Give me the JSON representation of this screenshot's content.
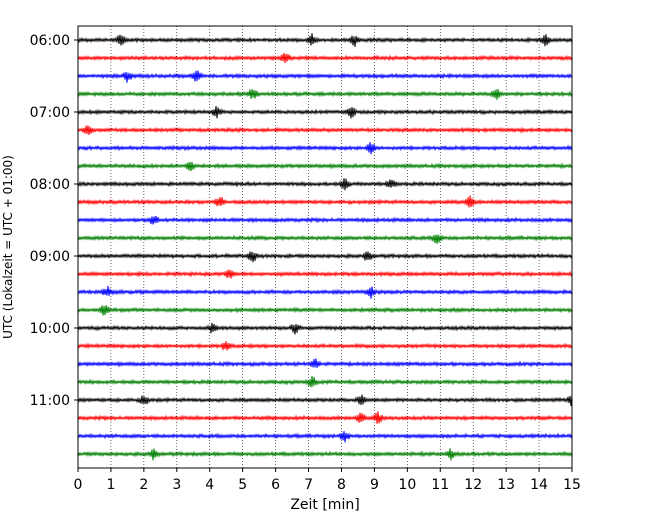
{
  "chart_data": {
    "type": "line",
    "title": "",
    "xlabel": "Zeit  [min]",
    "ylabel": "UTC (Lokalzeit = UTC + 01:00)",
    "xlim": [
      0,
      15
    ],
    "x_ticks": [
      "0",
      "1",
      "2",
      "3",
      "4",
      "5",
      "6",
      "7",
      "8",
      "9",
      "10",
      "11",
      "12",
      "13",
      "14",
      "15"
    ],
    "y_tick_labels": [
      "06:00",
      "07:00",
      "08:00",
      "09:00",
      "10:00",
      "11:00"
    ],
    "y_tick_rows": [
      0,
      4,
      8,
      12,
      16,
      20
    ],
    "grid": "vertical dotted lines at each minute",
    "row_interval_minutes": 15,
    "rows": [
      {
        "start": "06:00",
        "color": "#000000"
      },
      {
        "start": "06:15",
        "color": "#ff0000"
      },
      {
        "start": "06:30",
        "color": "#0000ff"
      },
      {
        "start": "06:45",
        "color": "#008000"
      },
      {
        "start": "07:00",
        "color": "#000000"
      },
      {
        "start": "07:15",
        "color": "#ff0000"
      },
      {
        "start": "07:30",
        "color": "#0000ff"
      },
      {
        "start": "07:45",
        "color": "#008000"
      },
      {
        "start": "08:00",
        "color": "#000000"
      },
      {
        "start": "08:15",
        "color": "#ff0000"
      },
      {
        "start": "08:30",
        "color": "#0000ff"
      },
      {
        "start": "08:45",
        "color": "#008000"
      },
      {
        "start": "09:00",
        "color": "#000000"
      },
      {
        "start": "09:15",
        "color": "#ff0000"
      },
      {
        "start": "09:30",
        "color": "#0000ff"
      },
      {
        "start": "09:45",
        "color": "#008000"
      },
      {
        "start": "10:00",
        "color": "#000000"
      },
      {
        "start": "10:15",
        "color": "#ff0000"
      },
      {
        "start": "10:30",
        "color": "#0000ff"
      },
      {
        "start": "10:45",
        "color": "#008000"
      },
      {
        "start": "11:00",
        "color": "#000000"
      },
      {
        "start": "11:15",
        "color": "#ff0000"
      },
      {
        "start": "11:30",
        "color": "#0000ff"
      },
      {
        "start": "11:45",
        "color": "#008000"
      }
    ],
    "events": [
      [
        1.3,
        7.1,
        8.4,
        14.2
      ],
      [
        6.3
      ],
      [
        1.5,
        3.6
      ],
      [
        5.3,
        12.7
      ],
      [
        4.2,
        8.3
      ],
      [
        0.3
      ],
      [
        8.9
      ],
      [
        3.4
      ],
      [
        8.1,
        9.5
      ],
      [
        4.3,
        11.9
      ],
      [
        2.3
      ],
      [
        10.9
      ],
      [
        5.3,
        8.8
      ],
      [
        4.6
      ],
      [
        0.9,
        8.9
      ],
      [
        0.8
      ],
      [
        4.1,
        6.6
      ],
      [
        4.5
      ],
      [
        7.2
      ],
      [
        7.1
      ],
      [
        2.0,
        8.6,
        15.0
      ],
      [
        8.6,
        9.1
      ],
      [
        8.1
      ],
      [
        2.3,
        11.3
      ]
    ]
  }
}
